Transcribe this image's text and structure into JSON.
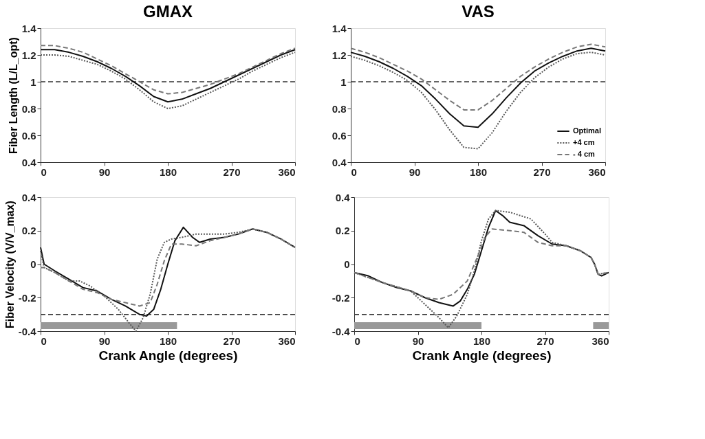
{
  "chart_data": [
    {
      "type": "line",
      "title": "GMAX",
      "ylabel": "Fiber Length (L/L_opt)",
      "xlim": [
        0,
        360
      ],
      "xticks": [
        0,
        90,
        180,
        270,
        360
      ],
      "ylim": [
        0.4,
        1.4
      ],
      "yticks": [
        0.4,
        0.6,
        0.8,
        1,
        1.2,
        1.4
      ],
      "grid": false,
      "legend": false,
      "marker": "none",
      "x": [
        0,
        20,
        40,
        60,
        80,
        100,
        120,
        140,
        160,
        180,
        200,
        220,
        240,
        260,
        280,
        300,
        320,
        340,
        360
      ],
      "series": [
        {
          "color": "#111111",
          "line_style": "solid",
          "values": [
            1.24,
            1.24,
            1.22,
            1.19,
            1.15,
            1.1,
            1.04,
            0.97,
            0.89,
            0.85,
            0.87,
            0.91,
            0.95,
            1.0,
            1.05,
            1.1,
            1.15,
            1.2,
            1.24
          ]
        },
        {
          "color": "#555555",
          "line_style": "dotted",
          "values": [
            1.2,
            1.2,
            1.19,
            1.16,
            1.13,
            1.08,
            1.02,
            0.94,
            0.85,
            0.8,
            0.82,
            0.87,
            0.92,
            0.97,
            1.02,
            1.08,
            1.13,
            1.18,
            1.22
          ]
        },
        {
          "color": "#777777",
          "line_style": "dashed",
          "values": [
            1.27,
            1.27,
            1.25,
            1.22,
            1.17,
            1.12,
            1.06,
            1.0,
            0.94,
            0.91,
            0.92,
            0.95,
            0.98,
            1.02,
            1.06,
            1.11,
            1.16,
            1.21,
            1.25
          ]
        }
      ],
      "ref_lines": [
        {
          "axis": "y",
          "value": 1,
          "line_style": "dashed",
          "color": "#333333"
        }
      ]
    },
    {
      "type": "line",
      "title": "VAS",
      "xlim": [
        0,
        360
      ],
      "xticks": [
        0,
        90,
        180,
        270,
        360
      ],
      "ylim": [
        0.4,
        1.4
      ],
      "yticks": [
        0.4,
        0.6,
        0.8,
        1,
        1.2,
        1.4
      ],
      "grid": false,
      "legend": "bottom right",
      "marker": "none",
      "x": [
        0,
        20,
        40,
        60,
        80,
        100,
        120,
        140,
        160,
        180,
        200,
        220,
        240,
        260,
        280,
        300,
        320,
        340,
        360
      ],
      "series": [
        {
          "name": "Optimal",
          "color": "#111111",
          "line_style": "solid",
          "values": [
            1.22,
            1.19,
            1.15,
            1.1,
            1.04,
            0.97,
            0.87,
            0.76,
            0.67,
            0.66,
            0.76,
            0.88,
            0.99,
            1.08,
            1.14,
            1.19,
            1.23,
            1.25,
            1.23
          ]
        },
        {
          "name": "+4 cm",
          "color": "#555555",
          "line_style": "dotted",
          "values": [
            1.19,
            1.16,
            1.12,
            1.07,
            1.01,
            0.92,
            0.79,
            0.64,
            0.51,
            0.5,
            0.62,
            0.78,
            0.92,
            1.03,
            1.11,
            1.17,
            1.21,
            1.22,
            1.2
          ]
        },
        {
          "name": "- 4 cm",
          "color": "#777777",
          "line_style": "dashed",
          "values": [
            1.25,
            1.22,
            1.18,
            1.13,
            1.08,
            1.02,
            0.94,
            0.86,
            0.79,
            0.79,
            0.86,
            0.95,
            1.04,
            1.11,
            1.17,
            1.22,
            1.26,
            1.28,
            1.26
          ]
        }
      ],
      "ref_lines": [
        {
          "axis": "y",
          "value": 1,
          "line_style": "dashed",
          "color": "#333333"
        }
      ]
    },
    {
      "type": "line",
      "xlabel": "Crank Angle (degrees)",
      "ylabel": "Fiber Velocity (V/V_max)",
      "xlim": [
        0,
        360
      ],
      "xticks": [
        0,
        90,
        180,
        270,
        360
      ],
      "ylim": [
        -0.4,
        0.4
      ],
      "yticks": [
        -0.4,
        -0.2,
        0,
        0.2,
        0.4
      ],
      "grid": false,
      "legend": false,
      "marker": "none",
      "series": [
        {
          "color": "#111111",
          "line_style": "solid",
          "x": [
            0,
            5,
            20,
            40,
            60,
            80,
            100,
            120,
            140,
            150,
            160,
            170,
            180,
            190,
            202,
            215,
            225,
            240,
            260,
            280,
            300,
            320,
            340,
            360
          ],
          "values": [
            0.1,
            0.0,
            -0.04,
            -0.09,
            -0.14,
            -0.16,
            -0.21,
            -0.25,
            -0.3,
            -0.31,
            -0.27,
            -0.15,
            0.0,
            0.14,
            0.22,
            0.16,
            0.13,
            0.15,
            0.16,
            0.18,
            0.21,
            0.19,
            0.15,
            0.1
          ]
        },
        {
          "color": "#555555",
          "line_style": "dotted",
          "x": [
            0,
            5,
            20,
            40,
            55,
            70,
            90,
            110,
            125,
            135,
            145,
            155,
            165,
            175,
            185,
            200,
            220,
            240,
            260,
            280,
            300,
            320,
            340,
            360
          ],
          "values": [
            0.08,
            -0.02,
            -0.05,
            -0.1,
            -0.1,
            -0.13,
            -0.19,
            -0.27,
            -0.35,
            -0.4,
            -0.32,
            -0.18,
            0.03,
            0.13,
            0.15,
            0.16,
            0.18,
            0.18,
            0.18,
            0.19,
            0.21,
            0.19,
            0.15,
            0.1
          ]
        },
        {
          "color": "#777777",
          "line_style": "dashed",
          "x": [
            0,
            5,
            20,
            40,
            60,
            80,
            100,
            120,
            140,
            155,
            165,
            175,
            185,
            200,
            220,
            240,
            260,
            280,
            300,
            320,
            340,
            360
          ],
          "values": [
            -0.02,
            -0.02,
            -0.05,
            -0.1,
            -0.15,
            -0.17,
            -0.21,
            -0.23,
            -0.25,
            -0.23,
            -0.12,
            0.02,
            0.12,
            0.12,
            0.11,
            0.14,
            0.16,
            0.18,
            0.21,
            0.19,
            0.15,
            0.1
          ]
        }
      ],
      "ref_lines": [
        {
          "axis": "y",
          "value": -0.3,
          "line_style": "dashed",
          "color": "#333333"
        }
      ],
      "bands": [
        {
          "axis": "x",
          "from": 0,
          "to": 193,
          "color": "#999999"
        }
      ]
    },
    {
      "type": "line",
      "xlabel": "Crank Angle (degrees)",
      "xlim": [
        0,
        360
      ],
      "xticks": [
        0,
        90,
        180,
        270,
        360
      ],
      "ylim": [
        -0.4,
        0.4
      ],
      "yticks": [
        -0.4,
        -0.2,
        0,
        0.2,
        0.4
      ],
      "grid": false,
      "legend": false,
      "marker": "none",
      "series": [
        {
          "color": "#111111",
          "line_style": "solid",
          "x": [
            0,
            20,
            40,
            60,
            80,
            100,
            120,
            140,
            150,
            160,
            170,
            180,
            190,
            200,
            210,
            220,
            240,
            260,
            280,
            300,
            320,
            335,
            340,
            345,
            350,
            360
          ],
          "values": [
            -0.05,
            -0.07,
            -0.11,
            -0.14,
            -0.16,
            -0.2,
            -0.23,
            -0.25,
            -0.22,
            -0.15,
            -0.06,
            0.08,
            0.22,
            0.32,
            0.29,
            0.25,
            0.23,
            0.17,
            0.12,
            0.11,
            0.08,
            0.04,
            0.0,
            -0.06,
            -0.07,
            -0.05
          ]
        },
        {
          "color": "#555555",
          "line_style": "dotted",
          "x": [
            0,
            40,
            80,
            100,
            120,
            133,
            145,
            160,
            170,
            180,
            190,
            200,
            220,
            250,
            270,
            280,
            300,
            320,
            335,
            340,
            345,
            360
          ],
          "values": [
            -0.05,
            -0.11,
            -0.16,
            -0.24,
            -0.32,
            -0.38,
            -0.31,
            -0.18,
            -0.04,
            0.14,
            0.27,
            0.32,
            0.31,
            0.27,
            0.18,
            0.13,
            0.11,
            0.08,
            0.04,
            0.0,
            -0.06,
            -0.05
          ]
        },
        {
          "color": "#777777",
          "line_style": "dashed",
          "x": [
            0,
            40,
            80,
            100,
            120,
            140,
            160,
            175,
            185,
            195,
            220,
            240,
            260,
            280,
            300,
            320,
            335,
            340,
            345,
            360
          ],
          "values": [
            -0.05,
            -0.11,
            -0.16,
            -0.2,
            -0.21,
            -0.18,
            -0.1,
            0.05,
            0.16,
            0.21,
            0.2,
            0.19,
            0.13,
            0.11,
            0.11,
            0.08,
            0.04,
            0.0,
            -0.06,
            -0.05
          ]
        }
      ],
      "ref_lines": [
        {
          "axis": "y",
          "value": -0.3,
          "line_style": "dashed",
          "color": "#333333"
        }
      ],
      "bands": [
        {
          "axis": "x",
          "from": 0,
          "to": 180,
          "color": "#999999"
        },
        {
          "axis": "x",
          "from": 338,
          "to": 360,
          "color": "#999999"
        }
      ]
    }
  ]
}
